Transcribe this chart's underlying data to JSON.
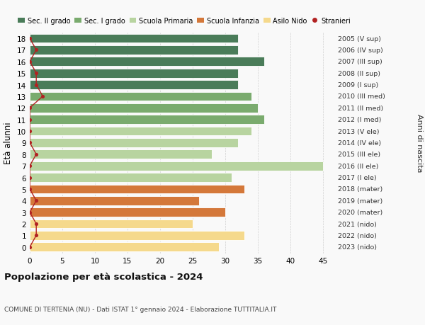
{
  "ages": [
    18,
    17,
    16,
    15,
    14,
    13,
    12,
    11,
    10,
    9,
    8,
    7,
    6,
    5,
    4,
    3,
    2,
    1,
    0
  ],
  "bar_values": [
    32,
    32,
    36,
    32,
    32,
    34,
    35,
    36,
    34,
    32,
    28,
    45,
    31,
    33,
    26,
    30,
    25,
    33,
    29
  ],
  "right_labels": [
    "2005 (V sup)",
    "2006 (IV sup)",
    "2007 (III sup)",
    "2008 (II sup)",
    "2009 (I sup)",
    "2010 (III med)",
    "2011 (II med)",
    "2012 (I med)",
    "2013 (V ele)",
    "2014 (IV ele)",
    "2015 (III ele)",
    "2016 (II ele)",
    "2017 (I ele)",
    "2018 (mater)",
    "2019 (mater)",
    "2020 (mater)",
    "2021 (nido)",
    "2022 (nido)",
    "2023 (nido)"
  ],
  "bar_colors": [
    "#4a7c59",
    "#4a7c59",
    "#4a7c59",
    "#4a7c59",
    "#4a7c59",
    "#7aab6e",
    "#7aab6e",
    "#7aab6e",
    "#b8d4a0",
    "#b8d4a0",
    "#b8d4a0",
    "#b8d4a0",
    "#b8d4a0",
    "#d4783a",
    "#d4783a",
    "#d4783a",
    "#f5d98c",
    "#f5d98c",
    "#f5d98c"
  ],
  "legend_labels": [
    "Sec. II grado",
    "Sec. I grado",
    "Scuola Primaria",
    "Scuola Infanzia",
    "Asilo Nido",
    "Stranieri"
  ],
  "legend_colors": [
    "#4a7c59",
    "#7aab6e",
    "#b8d4a0",
    "#d4783a",
    "#f5d98c",
    "#b22222"
  ],
  "ylabel": "Età alunni",
  "right_ylabel": "Anni di nascita",
  "title": "Popolazione per età scolastica - 2024",
  "subtitle": "COMUNE DI TERTENIA (NU) - Dati ISTAT 1° gennaio 2024 - Elaborazione TUTTITALIA.IT",
  "xlim": [
    0,
    47
  ],
  "xticks": [
    0,
    5,
    10,
    15,
    20,
    25,
    30,
    35,
    40,
    45
  ],
  "bg_color": "#f9f9f9",
  "bar_height": 0.78,
  "stranieri_color": "#b22222",
  "stranieri_x": [
    0,
    1,
    0,
    1,
    1,
    2,
    0,
    0,
    0,
    0,
    1,
    0,
    0,
    0,
    1,
    0,
    1,
    1,
    0
  ]
}
